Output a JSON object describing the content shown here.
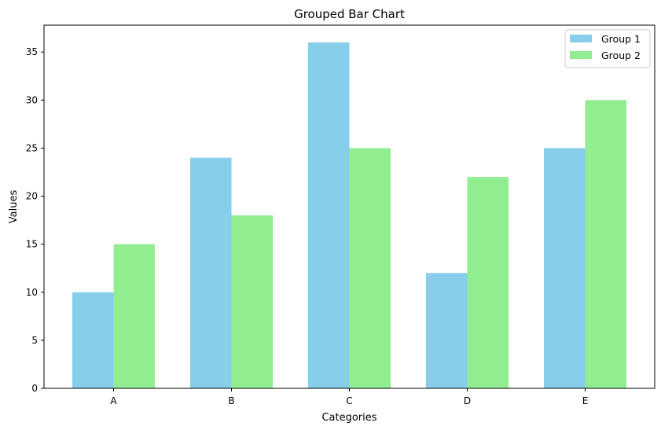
{
  "chart_data": {
    "type": "bar",
    "title": "Grouped Bar Chart",
    "xlabel": "Categories",
    "ylabel": "Values",
    "categories": [
      "A",
      "B",
      "C",
      "D",
      "E"
    ],
    "series": [
      {
        "name": "Group 1",
        "color": "#87ceeb",
        "values": [
          10,
          24,
          36,
          12,
          25
        ]
      },
      {
        "name": "Group 2",
        "color": "#90ee90",
        "values": [
          15,
          18,
          25,
          22,
          30
        ]
      }
    ],
    "ylim": [
      0,
      37.8
    ],
    "yticks": [
      0,
      5,
      10,
      15,
      20,
      25,
      30,
      35
    ],
    "grid": false,
    "legend_position": "top-right"
  }
}
